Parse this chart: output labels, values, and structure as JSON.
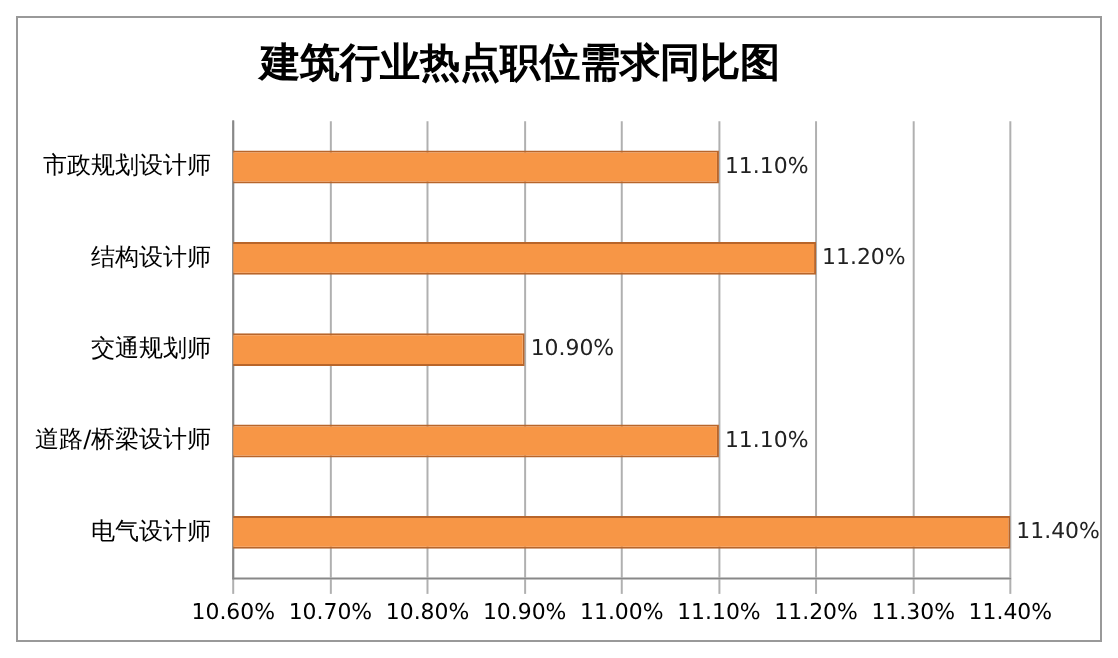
{
  "chart_data": {
    "type": "bar",
    "orientation": "horizontal",
    "title": "建筑行业热点职位需求同比图",
    "categories": [
      "市政规划设计师",
      "结构设计师",
      "交通规划师",
      "道路/桥梁设计师",
      "电气设计师"
    ],
    "values": [
      11.1,
      11.2,
      10.9,
      11.1,
      11.4
    ],
    "value_labels": [
      "11.10%",
      "11.20%",
      "10.90%",
      "11.10%",
      "11.40%"
    ],
    "color": "#f79646",
    "xlim": [
      10.6,
      11.4
    ],
    "xticks": [
      {
        "value": 10.6,
        "label": "10.60%"
      },
      {
        "value": 10.7,
        "label": "10.70%"
      },
      {
        "value": 10.8,
        "label": "10.80%"
      },
      {
        "value": 10.9,
        "label": "10.90%"
      },
      {
        "value": 11.0,
        "label": "11.00%"
      },
      {
        "value": 11.1,
        "label": "11.10%"
      },
      {
        "value": 11.2,
        "label": "11.20%"
      },
      {
        "value": 11.3,
        "label": "11.30%"
      },
      {
        "value": 11.4,
        "label": "11.40%"
      }
    ],
    "grid": "x"
  }
}
